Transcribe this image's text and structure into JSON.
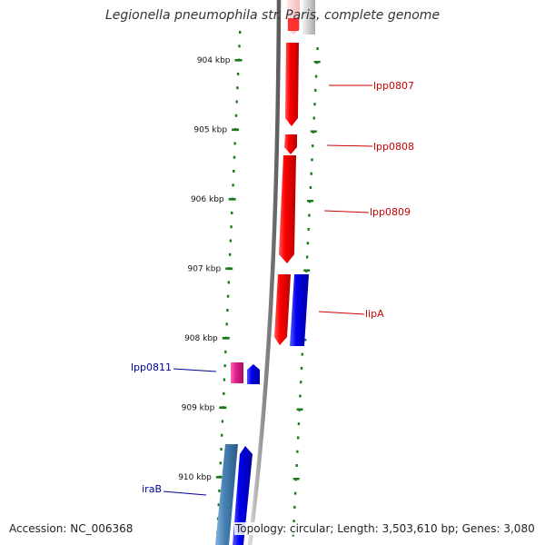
{
  "title": "Legionella pneumophila str. Paris, complete genome",
  "footer": {
    "accession_label": "Accession:",
    "accession_value": "NC_006368",
    "topology_label": "Topology:",
    "topology_value": "circular",
    "length_label": "Length:",
    "length_value": "3,503,610 bp",
    "genes_label": "Genes:",
    "genes_value": "3,080"
  },
  "scale": {
    "unit": "kbp",
    "ticks": [
      "904 kbp",
      "905 kbp",
      "906 kbp",
      "907 kbp",
      "908 kbp",
      "909 kbp",
      "910 kbp"
    ]
  },
  "genes": [
    {
      "label": "lpp0807",
      "strand": "reverse"
    },
    {
      "label": "lpp0808",
      "strand": "reverse"
    },
    {
      "label": "lpp0809",
      "strand": "reverse"
    },
    {
      "label": "lipA",
      "strand": "reverse"
    },
    {
      "label": "lpp0811",
      "strand": "forward"
    },
    {
      "label": "iraB",
      "strand": "forward"
    }
  ],
  "colors": {
    "reverse_gene": "#e00000",
    "forward_gene": "#0000e6",
    "pseudo_gene": "#e0208c",
    "rrna_gene": "#4682b4",
    "grey_feature": "#bfbfbf",
    "tick": "#1a7a1a",
    "reverse_label": "#cc0000",
    "forward_label": "#000099",
    "backbone": "#888888"
  }
}
